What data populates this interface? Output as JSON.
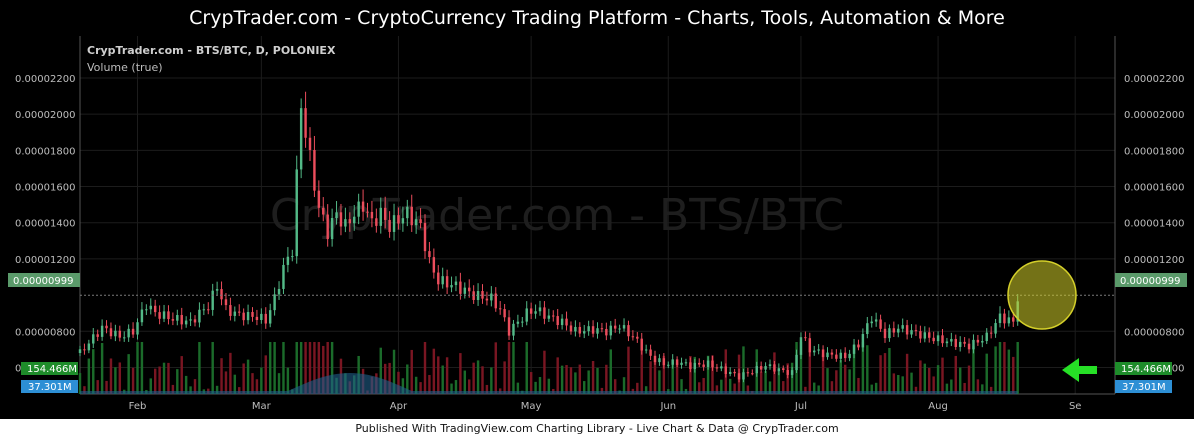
{
  "header": {
    "title": "CrypTrader.com  -  CryptoCurrency Trading Platform  -  Charts, Tools, Automation & More"
  },
  "footer": {
    "text": "Published With TradingView.com Charting Library - Live Chart & Data @ CrypTrader.com"
  },
  "chart_data": {
    "type": "candlestick",
    "title": "CrypTrader.com - BTS/BTC, D, POLONIEX",
    "subtitle": "Volume (true)",
    "watermark": "CrypTrader.com - BTS/BTC",
    "y_ticks": [
      "0.00002200",
      "0.00002000",
      "0.00001800",
      "0.00001600",
      "0.00001400",
      "0.00001200",
      "0.00000800",
      "0.00000600"
    ],
    "y_tick_values": [
      2.2e-05,
      2e-05,
      1.8e-05,
      1.6e-05,
      1.4e-05,
      1.2e-05,
      8e-06,
      6e-06
    ],
    "ylim": [
      4.7e-06,
      2.36e-05
    ],
    "x_ticks": [
      "Feb",
      "Mar",
      "Apr",
      "May",
      "Jun",
      "Jul",
      "Aug",
      "Se"
    ],
    "x_tick_days": [
      0,
      28,
      59,
      89,
      120,
      150,
      181,
      212
    ],
    "xlim_days": [
      -13,
      221
    ],
    "last_price_label": "0.00000999",
    "last_price": 9.99e-06,
    "volume_labels": {
      "volume": "154.466M",
      "volume_ma": "37.301M"
    },
    "colors": {
      "up": "#53b987",
      "down": "#eb4d5c",
      "volume_up": "#1b6b2a",
      "volume_down": "#7a1622",
      "volume_ma_area": "#1f5f8b",
      "last_price_bg": "#5a9a6a",
      "volume_label_bg": "#1e8c2a",
      "volume_ma_label_bg": "#2d8fd5",
      "highlight": "#d4cf2a",
      "arrow": "#26e026"
    },
    "price_anchors": [
      [
        -13,
        6.8e-06
      ],
      [
        -8,
        8.2e-06
      ],
      [
        -4,
        7.7e-06
      ],
      [
        -1,
        8e-06
      ],
      [
        2,
        9.5e-06
      ],
      [
        4,
        9e-06
      ],
      [
        8,
        8.7e-06
      ],
      [
        12,
        8.5e-06
      ],
      [
        14,
        9e-06
      ],
      [
        16,
        9.4e-06
      ],
      [
        18,
        1.05e-05
      ],
      [
        20,
        9.2e-06
      ],
      [
        23,
        8.9e-06
      ],
      [
        27,
        8.8e-06
      ],
      [
        29,
        8.6e-06
      ],
      [
        30,
        9.2e-06
      ],
      [
        31,
        9.8e-06
      ],
      [
        33,
        1.15e-05
      ],
      [
        35,
        1.25e-05
      ],
      [
        37,
        2.05e-05
      ],
      [
        39,
        1.75e-05
      ],
      [
        41,
        1.48e-05
      ],
      [
        43,
        1.35e-05
      ],
      [
        45,
        1.45e-05
      ],
      [
        47,
        1.38e-05
      ],
      [
        49,
        1.45e-05
      ],
      [
        51,
        1.5e-05
      ],
      [
        53,
        1.4e-05
      ],
      [
        55,
        1.45e-05
      ],
      [
        57,
        1.38e-05
      ],
      [
        59,
        1.42e-05
      ],
      [
        61,
        1.45e-05
      ],
      [
        64,
        1.38e-05
      ],
      [
        66,
        1.18e-05
      ],
      [
        68,
        1.08e-05
      ],
      [
        72,
        1.05e-05
      ],
      [
        76,
        1e-05
      ],
      [
        80,
        9.8e-06
      ],
      [
        82,
        9.2e-06
      ],
      [
        84,
        8e-06
      ],
      [
        88,
        9e-06
      ],
      [
        90,
        9.2e-06
      ],
      [
        93,
        8.8e-06
      ],
      [
        96,
        8.5e-06
      ],
      [
        99,
        8e-06
      ],
      [
        103,
        8.1e-06
      ],
      [
        106,
        8e-06
      ],
      [
        109,
        8.3e-06
      ],
      [
        112,
        7.7e-06
      ],
      [
        116,
        6.6e-06
      ],
      [
        119,
        6.2e-06
      ],
      [
        122,
        6.3e-06
      ],
      [
        125,
        6.1e-06
      ],
      [
        129,
        6.2e-06
      ],
      [
        133,
        5.8e-06
      ],
      [
        136,
        5.5e-06
      ],
      [
        139,
        5.8e-06
      ],
      [
        142,
        6.1e-06
      ],
      [
        146,
        5.8e-06
      ],
      [
        148,
        5.7e-06
      ],
      [
        150,
        7.8e-06
      ],
      [
        152,
        7e-06
      ],
      [
        156,
        6.7e-06
      ],
      [
        160,
        6.6e-06
      ],
      [
        163,
        7.3e-06
      ],
      [
        166,
        8.8e-06
      ],
      [
        169,
        7.8e-06
      ],
      [
        172,
        8.2e-06
      ],
      [
        176,
        7.9e-06
      ],
      [
        180,
        7.6e-06
      ],
      [
        184,
        7.4e-06
      ],
      [
        188,
        7.2e-06
      ],
      [
        192,
        7.7e-06
      ],
      [
        195,
        8.8e-06
      ],
      [
        198,
        8.5e-06
      ],
      [
        199,
        9.9e-06
      ]
    ]
  }
}
